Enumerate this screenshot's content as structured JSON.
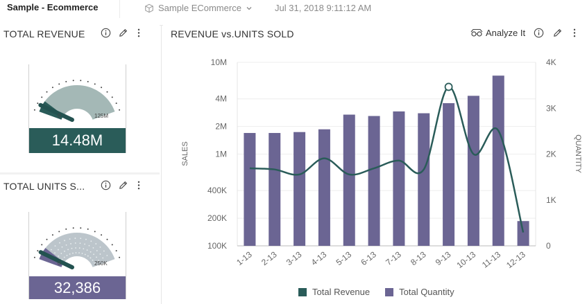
{
  "header": {
    "app_title": "Sample - Ecommerce",
    "data_source": "Sample ECommerce",
    "timestamp": "Jul 31, 2018 9:11:12 AM"
  },
  "colors": {
    "revenue": "#2a5c59",
    "quantity": "#6b6593",
    "gauge_revenue_band": "#a4b8b6",
    "gauge_units_band": "#bcc5cb"
  },
  "widgets": {
    "revenue": {
      "title": "TOTAL REVENUE",
      "gauge_min": "0",
      "gauge_max": "125M",
      "value": "14.48M",
      "fill_fraction": 0.12
    },
    "units": {
      "title": "TOTAL UNITS S...",
      "gauge_min": "0",
      "gauge_max": "250K",
      "value": "32,386",
      "fill_fraction": 0.13
    },
    "chart": {
      "title": "REVENUE vs.UNITS SOLD",
      "analyze_label": "Analyze It"
    }
  },
  "chart_data": {
    "type": "bar",
    "categories": [
      "1-13",
      "2-13",
      "3-13",
      "4-13",
      "5-13",
      "6-13",
      "7-13",
      "8-13",
      "9-13",
      "10-13",
      "11-13",
      "12-13"
    ],
    "ylabel": "SALES",
    "y2label": "QUANTITY",
    "y_scale": "log",
    "y_ticks": [
      "100K",
      "200K",
      "400K",
      "1M",
      "2M",
      "4M",
      "10M"
    ],
    "y_tick_values": [
      100000,
      200000,
      400000,
      1000000,
      2000000,
      4000000,
      10000000
    ],
    "y2_ticks": [
      "0",
      "1K",
      "2K",
      "3K",
      "4K"
    ],
    "y2_tick_values": [
      0,
      1000,
      2000,
      3000,
      4000
    ],
    "ylim": [
      100000,
      10000000
    ],
    "y2lim": [
      0,
      4000
    ],
    "legend_position": "bottom",
    "series": [
      {
        "name": "Total Revenue",
        "kind": "line",
        "axis": "left",
        "values": [
          700000,
          680000,
          600000,
          900000,
          600000,
          700000,
          850000,
          680000,
          5400000,
          1000000,
          1800000,
          140000
        ]
      },
      {
        "name": "Total Quantity",
        "kind": "bar",
        "axis": "right",
        "values": [
          2460,
          2460,
          2480,
          2540,
          2860,
          2830,
          2930,
          2890,
          3110,
          3270,
          3710,
          540
        ]
      }
    ]
  }
}
